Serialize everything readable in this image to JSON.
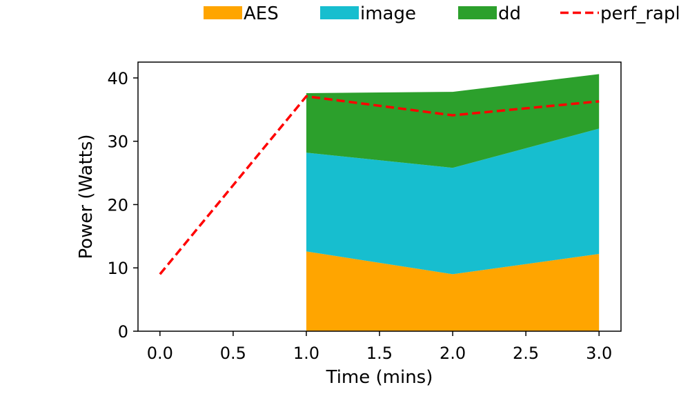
{
  "chart_data": {
    "type": "area",
    "xlabel": "Time (mins)",
    "ylabel": "Power (Watts)",
    "xlim": [
      -0.15,
      3.15
    ],
    "ylim": [
      0,
      42.5
    ],
    "xticks": [
      "0.0",
      "0.5",
      "1.0",
      "1.5",
      "2.0",
      "2.5",
      "3.0"
    ],
    "xtick_values": [
      0,
      0.5,
      1,
      1.5,
      2,
      2.5,
      3
    ],
    "yticks": [
      "0",
      "10",
      "20",
      "30",
      "40"
    ],
    "ytick_values": [
      0,
      10,
      20,
      30,
      40
    ],
    "grid": false,
    "legend_position": "top, outside plot, horizontal",
    "stacked_areas": {
      "x": [
        1,
        2,
        3
      ],
      "series": [
        {
          "name": "AES",
          "color": "#ffa500",
          "values": [
            12.6,
            9.0,
            12.2
          ]
        },
        {
          "name": "image",
          "color": "#17becf",
          "values": [
            15.6,
            16.8,
            19.8
          ]
        },
        {
          "name": "dd",
          "color": "#2ca02c",
          "values": [
            9.4,
            12.0,
            8.6
          ]
        }
      ]
    },
    "line": {
      "name": "perf_rapl",
      "color": "#ff0000",
      "style": "dashed",
      "x": [
        0,
        1,
        2,
        3
      ],
      "values": [
        9.0,
        37.1,
        34.1,
        36.3
      ]
    }
  }
}
